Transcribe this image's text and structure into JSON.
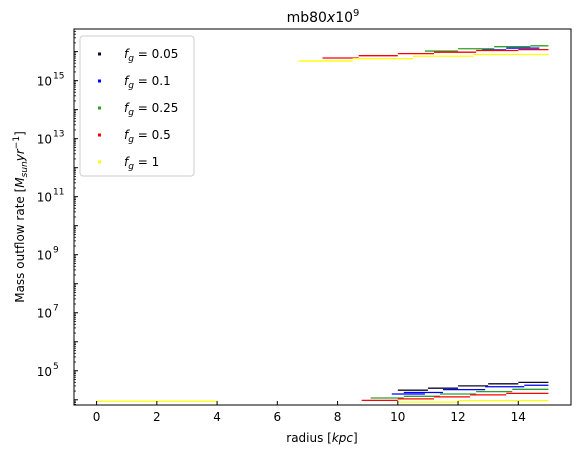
{
  "chart_data": {
    "type": "scatter",
    "title": "mb80x10^9",
    "title_parts": {
      "base": "mb80",
      "x": "x",
      "ten": "10",
      "exp": "9"
    },
    "xlabel": "radius [kpc]",
    "xlabel_parts": {
      "prefix": "radius [",
      "unit": "kpc",
      "suffix": "]"
    },
    "ylabel": "Mass outflow rate [M_sun yr^-1]",
    "ylabel_parts": {
      "prefix": "Mass outflow rate [",
      "m": "M",
      "sun": "sun",
      "yr": "yr",
      "exp": "−1",
      "suffix": "]"
    },
    "x_scale": "linear",
    "y_scale": "log",
    "xlim": [
      -0.75,
      15.75
    ],
    "ylim_log10": [
      3.82,
      16.78
    ],
    "x_ticks": [
      0,
      2,
      4,
      6,
      8,
      10,
      12,
      14
    ],
    "x_tick_labels": [
      "0",
      "2",
      "4",
      "6",
      "8",
      "10",
      "12",
      "14"
    ],
    "y_ticks_log10": [
      5,
      7,
      9,
      11,
      13,
      15
    ],
    "y_tick_labels": [
      {
        "base": "10",
        "exp": "5"
      },
      {
        "base": "10",
        "exp": "7"
      },
      {
        "base": "10",
        "exp": "9"
      },
      {
        "base": "10",
        "exp": "11"
      },
      {
        "base": "10",
        "exp": "13"
      },
      {
        "base": "10",
        "exp": "15"
      }
    ],
    "grid": false,
    "legend_position": "top-left",
    "series": [
      {
        "name": "f_g = 0.05",
        "label_parts": {
          "f": "f",
          "sub": "g",
          "rest": " = 0.05"
        },
        "color": "#0b0b2e",
        "segments": [
          {
            "x0": 10.0,
            "x1": 11.0,
            "log10_y": 4.33
          },
          {
            "x0": 11.0,
            "x1": 12.0,
            "log10_y": 4.4
          },
          {
            "x0": 12.0,
            "x1": 13.0,
            "log10_y": 4.48
          },
          {
            "x0": 13.0,
            "x1": 14.0,
            "log10_y": 4.55
          },
          {
            "x0": 14.0,
            "x1": 15.0,
            "log10_y": 4.6
          }
        ]
      },
      {
        "name": "f_g = 0.1",
        "label_parts": {
          "f": "f",
          "sub": "g",
          "rest": " = 0.1"
        },
        "color": "#0000ff",
        "segments": [
          {
            "x0": 9.8,
            "x1": 10.9,
            "log10_y": 4.2
          },
          {
            "x0": 10.2,
            "x1": 11.5,
            "log10_y": 4.25
          },
          {
            "x0": 11.5,
            "x1": 12.9,
            "log10_y": 4.35
          },
          {
            "x0": 12.9,
            "x1": 14.2,
            "log10_y": 4.45
          },
          {
            "x0": 14.2,
            "x1": 15.0,
            "log10_y": 4.5
          },
          {
            "x0": 12.8,
            "x1": 13.6,
            "log10_y": 16.06
          },
          {
            "x0": 13.6,
            "x1": 14.7,
            "log10_y": 16.12
          }
        ]
      },
      {
        "name": "f_g = 0.25",
        "label_parts": {
          "f": "f",
          "sub": "g",
          "rest": " = 0.25"
        },
        "color": "#2ca02c",
        "segments": [
          {
            "x0": 9.1,
            "x1": 10.2,
            "log10_y": 4.06
          },
          {
            "x0": 10.2,
            "x1": 11.4,
            "log10_y": 4.12
          },
          {
            "x0": 11.4,
            "x1": 12.6,
            "log10_y": 4.2
          },
          {
            "x0": 12.6,
            "x1": 13.8,
            "log10_y": 4.28
          },
          {
            "x0": 13.8,
            "x1": 15.0,
            "log10_y": 4.36
          },
          {
            "x0": 10.9,
            "x1": 12.0,
            "log10_y": 16.02
          },
          {
            "x0": 12.0,
            "x1": 13.2,
            "log10_y": 16.1
          },
          {
            "x0": 13.2,
            "x1": 14.4,
            "log10_y": 16.17
          },
          {
            "x0": 14.4,
            "x1": 15.0,
            "log10_y": 16.2
          }
        ]
      },
      {
        "name": "f_g = 0.5",
        "label_parts": {
          "f": "f",
          "sub": "g",
          "rest": " = 0.5"
        },
        "color": "#ff0000",
        "segments": [
          {
            "x0": 8.8,
            "x1": 10.0,
            "log10_y": 3.98
          },
          {
            "x0": 10.0,
            "x1": 11.2,
            "log10_y": 4.03
          },
          {
            "x0": 11.2,
            "x1": 12.4,
            "log10_y": 4.1
          },
          {
            "x0": 12.4,
            "x1": 13.6,
            "log10_y": 4.17
          },
          {
            "x0": 13.6,
            "x1": 15.0,
            "log10_y": 4.22
          },
          {
            "x0": 7.5,
            "x1": 8.7,
            "log10_y": 15.78
          },
          {
            "x0": 8.7,
            "x1": 10.0,
            "log10_y": 15.86
          },
          {
            "x0": 10.0,
            "x1": 11.2,
            "log10_y": 15.93
          },
          {
            "x0": 11.2,
            "x1": 12.6,
            "log10_y": 15.98
          },
          {
            "x0": 12.6,
            "x1": 14.0,
            "log10_y": 16.04
          },
          {
            "x0": 14.0,
            "x1": 15.0,
            "log10_y": 16.07
          }
        ]
      },
      {
        "name": "f_g = 1",
        "label_parts": {
          "f": "f",
          "sub": "g",
          "rest": " = 1"
        },
        "color": "#ffff00",
        "segments": [
          {
            "x0": 0.0,
            "x1": 4.0,
            "log10_y": 3.95
          },
          {
            "x0": 10.0,
            "x1": 12.0,
            "log10_y": 3.92
          },
          {
            "x0": 12.0,
            "x1": 15.0,
            "log10_y": 3.97
          },
          {
            "x0": 6.7,
            "x1": 8.5,
            "log10_y": 15.68
          },
          {
            "x0": 8.5,
            "x1": 10.5,
            "log10_y": 15.76
          },
          {
            "x0": 10.5,
            "x1": 12.5,
            "log10_y": 15.84
          },
          {
            "x0": 12.5,
            "x1": 15.0,
            "log10_y": 15.9
          }
        ]
      }
    ]
  }
}
